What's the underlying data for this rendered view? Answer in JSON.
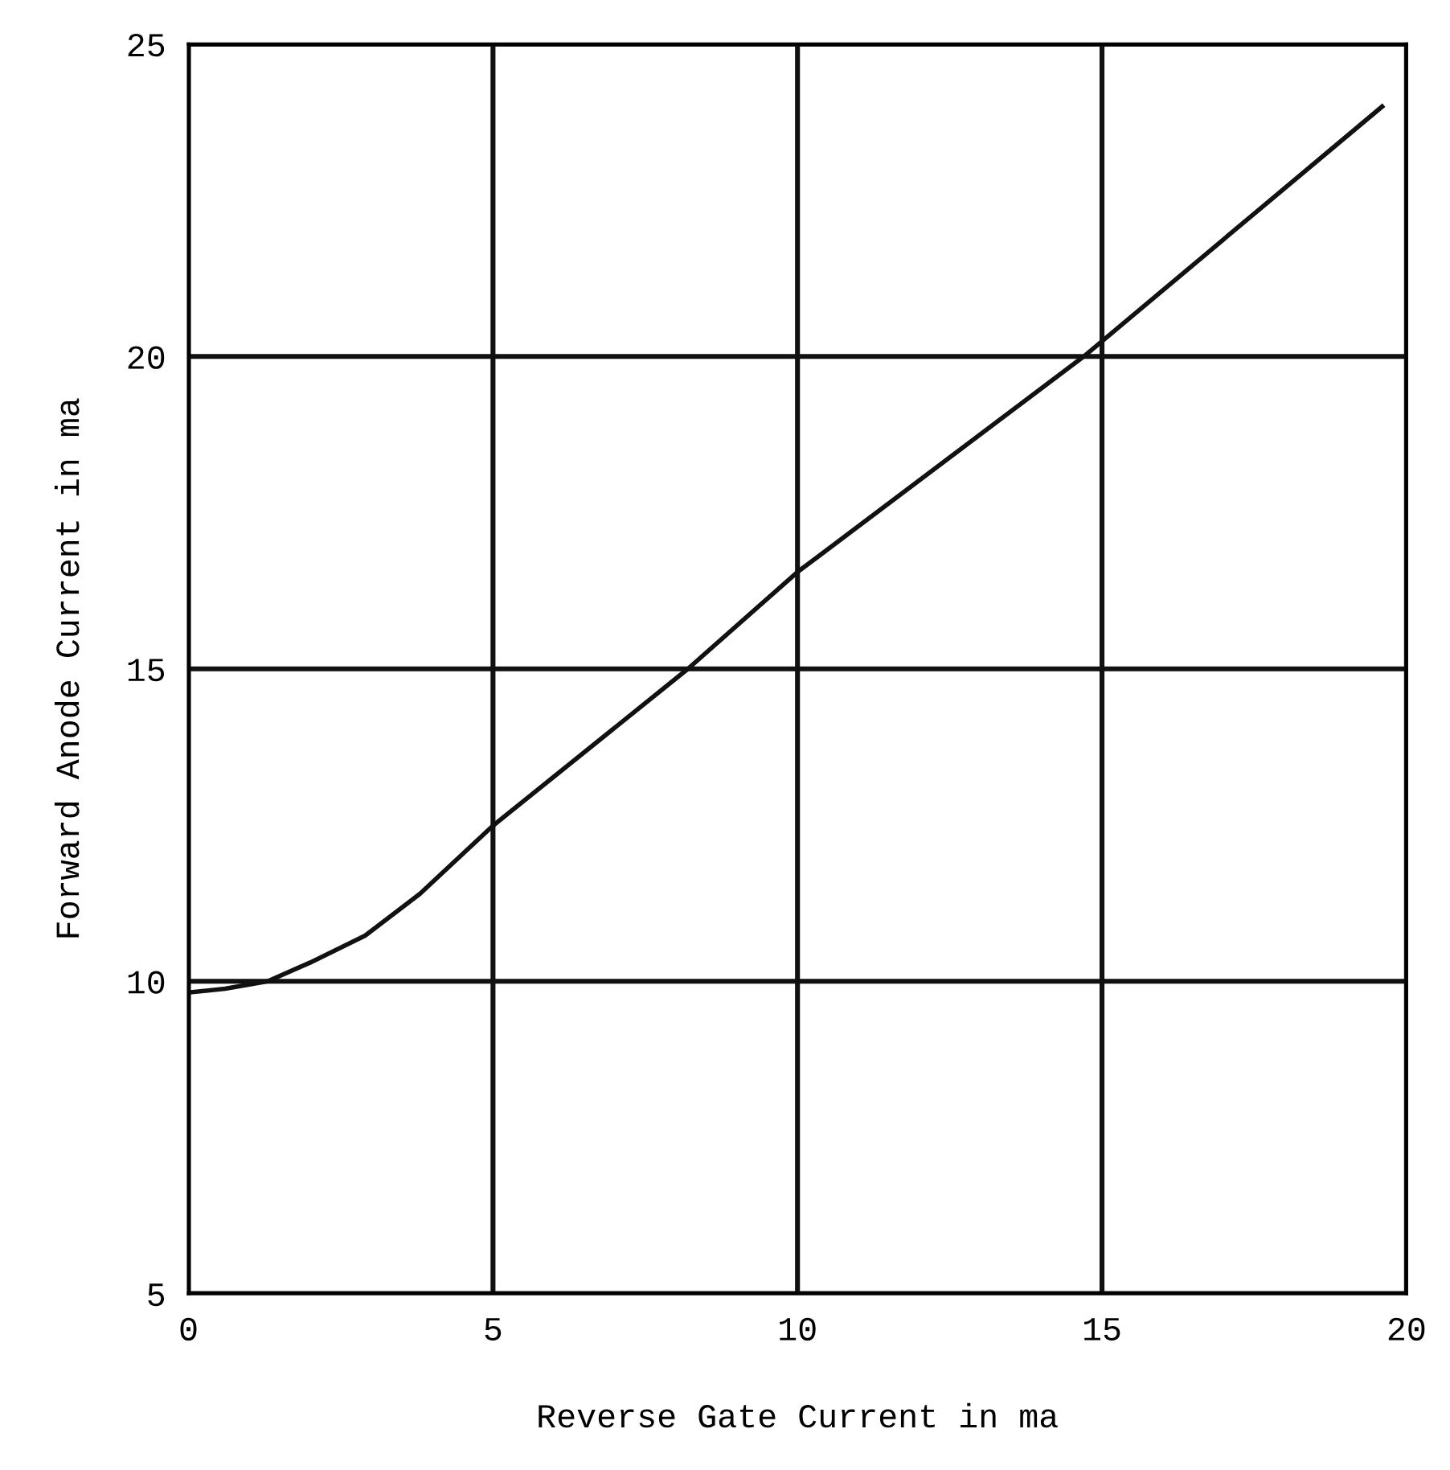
{
  "chart_data": {
    "type": "line",
    "xlabel": "Reverse Gate Current in ma",
    "ylabel": "Forward Anode Current in ma",
    "x": [
      0,
      0.6,
      1.3,
      2.0,
      2.9,
      3.8,
      5,
      8.2,
      10,
      14.7,
      19.6
    ],
    "series": [
      {
        "color": "#111111",
        "values": [
          9.82,
          9.88,
          10.0,
          10.3,
          10.73,
          11.4,
          12.49,
          15.0,
          16.55,
          20.0,
          24.0
        ]
      }
    ],
    "xlim": [
      0,
      20
    ],
    "ylim": [
      5,
      25
    ],
    "xticks": [
      0,
      5,
      10,
      15,
      20
    ],
    "yticks": [
      5,
      10,
      15,
      20,
      25
    ],
    "grid": true,
    "marker": "none",
    "line_style": "solid"
  }
}
